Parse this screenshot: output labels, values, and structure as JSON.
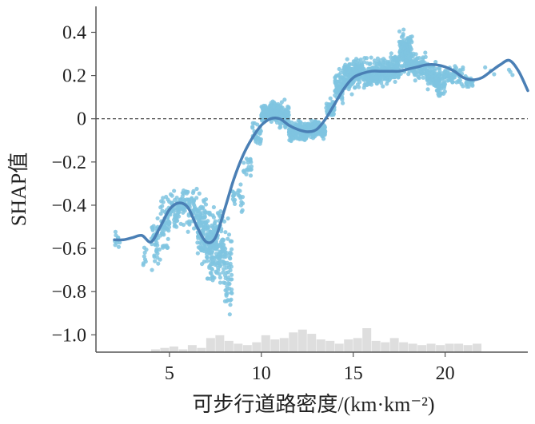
{
  "chart_data": {
    "type": "scatter",
    "xlabel": "可步行道路密度/(km·km⁻²)",
    "ylabel": "SHAP值",
    "xlim": [
      1.0,
      24.5
    ],
    "ylim": [
      -1.08,
      0.52
    ],
    "x_ticks": [
      5,
      10,
      15,
      20
    ],
    "y_ticks": [
      0.4,
      0.2,
      0,
      -0.2,
      -0.4,
      -0.6,
      -0.8,
      -1.0
    ],
    "y_tick_labels": [
      "0.4",
      "0.2",
      "0",
      "−0.2",
      "−0.4",
      "−0.6",
      "−0.8",
      "−1.0"
    ],
    "reference_line": {
      "y": 0,
      "style": "dashed"
    },
    "grid": false,
    "colors": {
      "points": "#7fc4e0",
      "trend": "#4a7fb5",
      "histogram": "#dedede",
      "axis": "#555555",
      "reference": "#222222"
    },
    "trend_line": {
      "x": [
        2.0,
        2.5,
        3.0,
        3.5,
        4.0,
        4.5,
        5.0,
        5.5,
        6.0,
        6.5,
        7.0,
        7.5,
        8.0,
        8.5,
        9.0,
        9.5,
        10.0,
        10.5,
        11.0,
        11.5,
        12.0,
        12.5,
        13.0,
        13.5,
        14.0,
        14.5,
        15.0,
        15.5,
        16.0,
        16.5,
        17.0,
        17.5,
        18.0,
        18.5,
        19.0,
        19.5,
        20.0,
        20.5,
        21.0,
        21.5,
        22.0,
        22.5,
        23.0,
        23.5,
        24.0,
        24.5
      ],
      "y": [
        -0.56,
        -0.56,
        -0.55,
        -0.54,
        -0.57,
        -0.5,
        -0.42,
        -0.39,
        -0.41,
        -0.5,
        -0.57,
        -0.55,
        -0.42,
        -0.28,
        -0.17,
        -0.09,
        -0.03,
        0.0,
        0.0,
        -0.03,
        -0.05,
        -0.06,
        -0.05,
        0.0,
        0.07,
        0.14,
        0.19,
        0.21,
        0.22,
        0.22,
        0.22,
        0.22,
        0.23,
        0.24,
        0.25,
        0.25,
        0.24,
        0.22,
        0.19,
        0.18,
        0.19,
        0.22,
        0.25,
        0.27,
        0.22,
        0.13
      ]
    },
    "scatter_bands": [
      {
        "x0": 2.0,
        "x1": 2.3,
        "center": -0.57,
        "spread": 0.07,
        "count": 10
      },
      {
        "x0": 3.5,
        "x1": 3.8,
        "center": -0.63,
        "spread": 0.1,
        "count": 8
      },
      {
        "x0": 4.0,
        "x1": 4.5,
        "center": -0.58,
        "spread": 0.16,
        "count": 40
      },
      {
        "x0": 4.5,
        "x1": 5.0,
        "center": -0.48,
        "spread": 0.17,
        "count": 60
      },
      {
        "x0": 5.0,
        "x1": 5.5,
        "center": -0.43,
        "spread": 0.12,
        "count": 45
      },
      {
        "x0": 5.5,
        "x1": 6.0,
        "center": -0.39,
        "spread": 0.12,
        "count": 40
      },
      {
        "x0": 6.0,
        "x1": 6.5,
        "center": -0.42,
        "spread": 0.15,
        "count": 45
      },
      {
        "x0": 6.5,
        "x1": 7.0,
        "center": -0.5,
        "spread": 0.2,
        "count": 90
      },
      {
        "x0": 7.0,
        "x1": 7.5,
        "center": -0.58,
        "spread": 0.22,
        "count": 110
      },
      {
        "x0": 7.5,
        "x1": 8.0,
        "center": -0.6,
        "spread": 0.22,
        "count": 90
      },
      {
        "x0": 8.0,
        "x1": 8.4,
        "center": -0.72,
        "spread": 0.3,
        "count": 55
      },
      {
        "x0": 8.4,
        "x1": 9.0,
        "center": -0.38,
        "spread": 0.1,
        "count": 25
      },
      {
        "x0": 9.0,
        "x1": 9.5,
        "center": -0.22,
        "spread": 0.08,
        "count": 20
      },
      {
        "x0": 9.5,
        "x1": 10.0,
        "center": -0.08,
        "spread": 0.08,
        "count": 30
      },
      {
        "x0": 10.0,
        "x1": 10.5,
        "center": 0.02,
        "spread": 0.06,
        "count": 90
      },
      {
        "x0": 10.5,
        "x1": 11.0,
        "center": 0.03,
        "spread": 0.07,
        "count": 80
      },
      {
        "x0": 11.0,
        "x1": 11.5,
        "center": 0.01,
        "spread": 0.09,
        "count": 70
      },
      {
        "x0": 11.5,
        "x1": 12.5,
        "center": -0.06,
        "spread": 0.06,
        "count": 160
      },
      {
        "x0": 12.5,
        "x1": 13.5,
        "center": -0.05,
        "spread": 0.06,
        "count": 140
      },
      {
        "x0": 13.5,
        "x1": 14.0,
        "center": 0.05,
        "spread": 0.06,
        "count": 50
      },
      {
        "x0": 14.0,
        "x1": 14.5,
        "center": 0.15,
        "spread": 0.1,
        "count": 70
      },
      {
        "x0": 14.5,
        "x1": 15.0,
        "center": 0.2,
        "spread": 0.1,
        "count": 90
      },
      {
        "x0": 15.0,
        "x1": 16.0,
        "center": 0.21,
        "spread": 0.09,
        "count": 150
      },
      {
        "x0": 16.0,
        "x1": 17.0,
        "center": 0.22,
        "spread": 0.08,
        "count": 150
      },
      {
        "x0": 17.0,
        "x1": 17.5,
        "center": 0.24,
        "spread": 0.09,
        "count": 80
      },
      {
        "x0": 17.5,
        "x1": 18.2,
        "center": 0.3,
        "spread": 0.13,
        "count": 140
      },
      {
        "x0": 18.2,
        "x1": 19.0,
        "center": 0.24,
        "spread": 0.08,
        "count": 90
      },
      {
        "x0": 19.0,
        "x1": 19.5,
        "center": 0.2,
        "spread": 0.08,
        "count": 70
      },
      {
        "x0": 19.5,
        "x1": 20.0,
        "center": 0.17,
        "spread": 0.09,
        "count": 70
      },
      {
        "x0": 20.0,
        "x1": 21.0,
        "center": 0.2,
        "spread": 0.07,
        "count": 60
      },
      {
        "x0": 21.0,
        "x1": 21.5,
        "center": 0.17,
        "spread": 0.05,
        "count": 20
      },
      {
        "x0": 22.0,
        "x1": 24.5,
        "center": 0.22,
        "spread": 0.04,
        "count": 6
      }
    ],
    "histogram": {
      "bin_width": 0.5,
      "bins_start": [
        4.0,
        4.5,
        5.0,
        5.5,
        6.0,
        6.5,
        7.0,
        7.5,
        8.0,
        8.5,
        9.0,
        9.5,
        10.0,
        10.5,
        11.0,
        11.5,
        12.0,
        12.5,
        13.0,
        13.5,
        14.0,
        14.5,
        15.0,
        15.5,
        16.0,
        16.5,
        17.0,
        17.5,
        18.0,
        18.5,
        19.0,
        19.5,
        20.0,
        20.5,
        21.0,
        21.5
      ],
      "counts": [
        2,
        3,
        4,
        2,
        5,
        3,
        10,
        12,
        8,
        6,
        5,
        7,
        12,
        9,
        10,
        14,
        16,
        13,
        9,
        8,
        6,
        9,
        10,
        17,
        8,
        7,
        10,
        7,
        6,
        5,
        6,
        5,
        6,
        6,
        5,
        6
      ]
    }
  }
}
